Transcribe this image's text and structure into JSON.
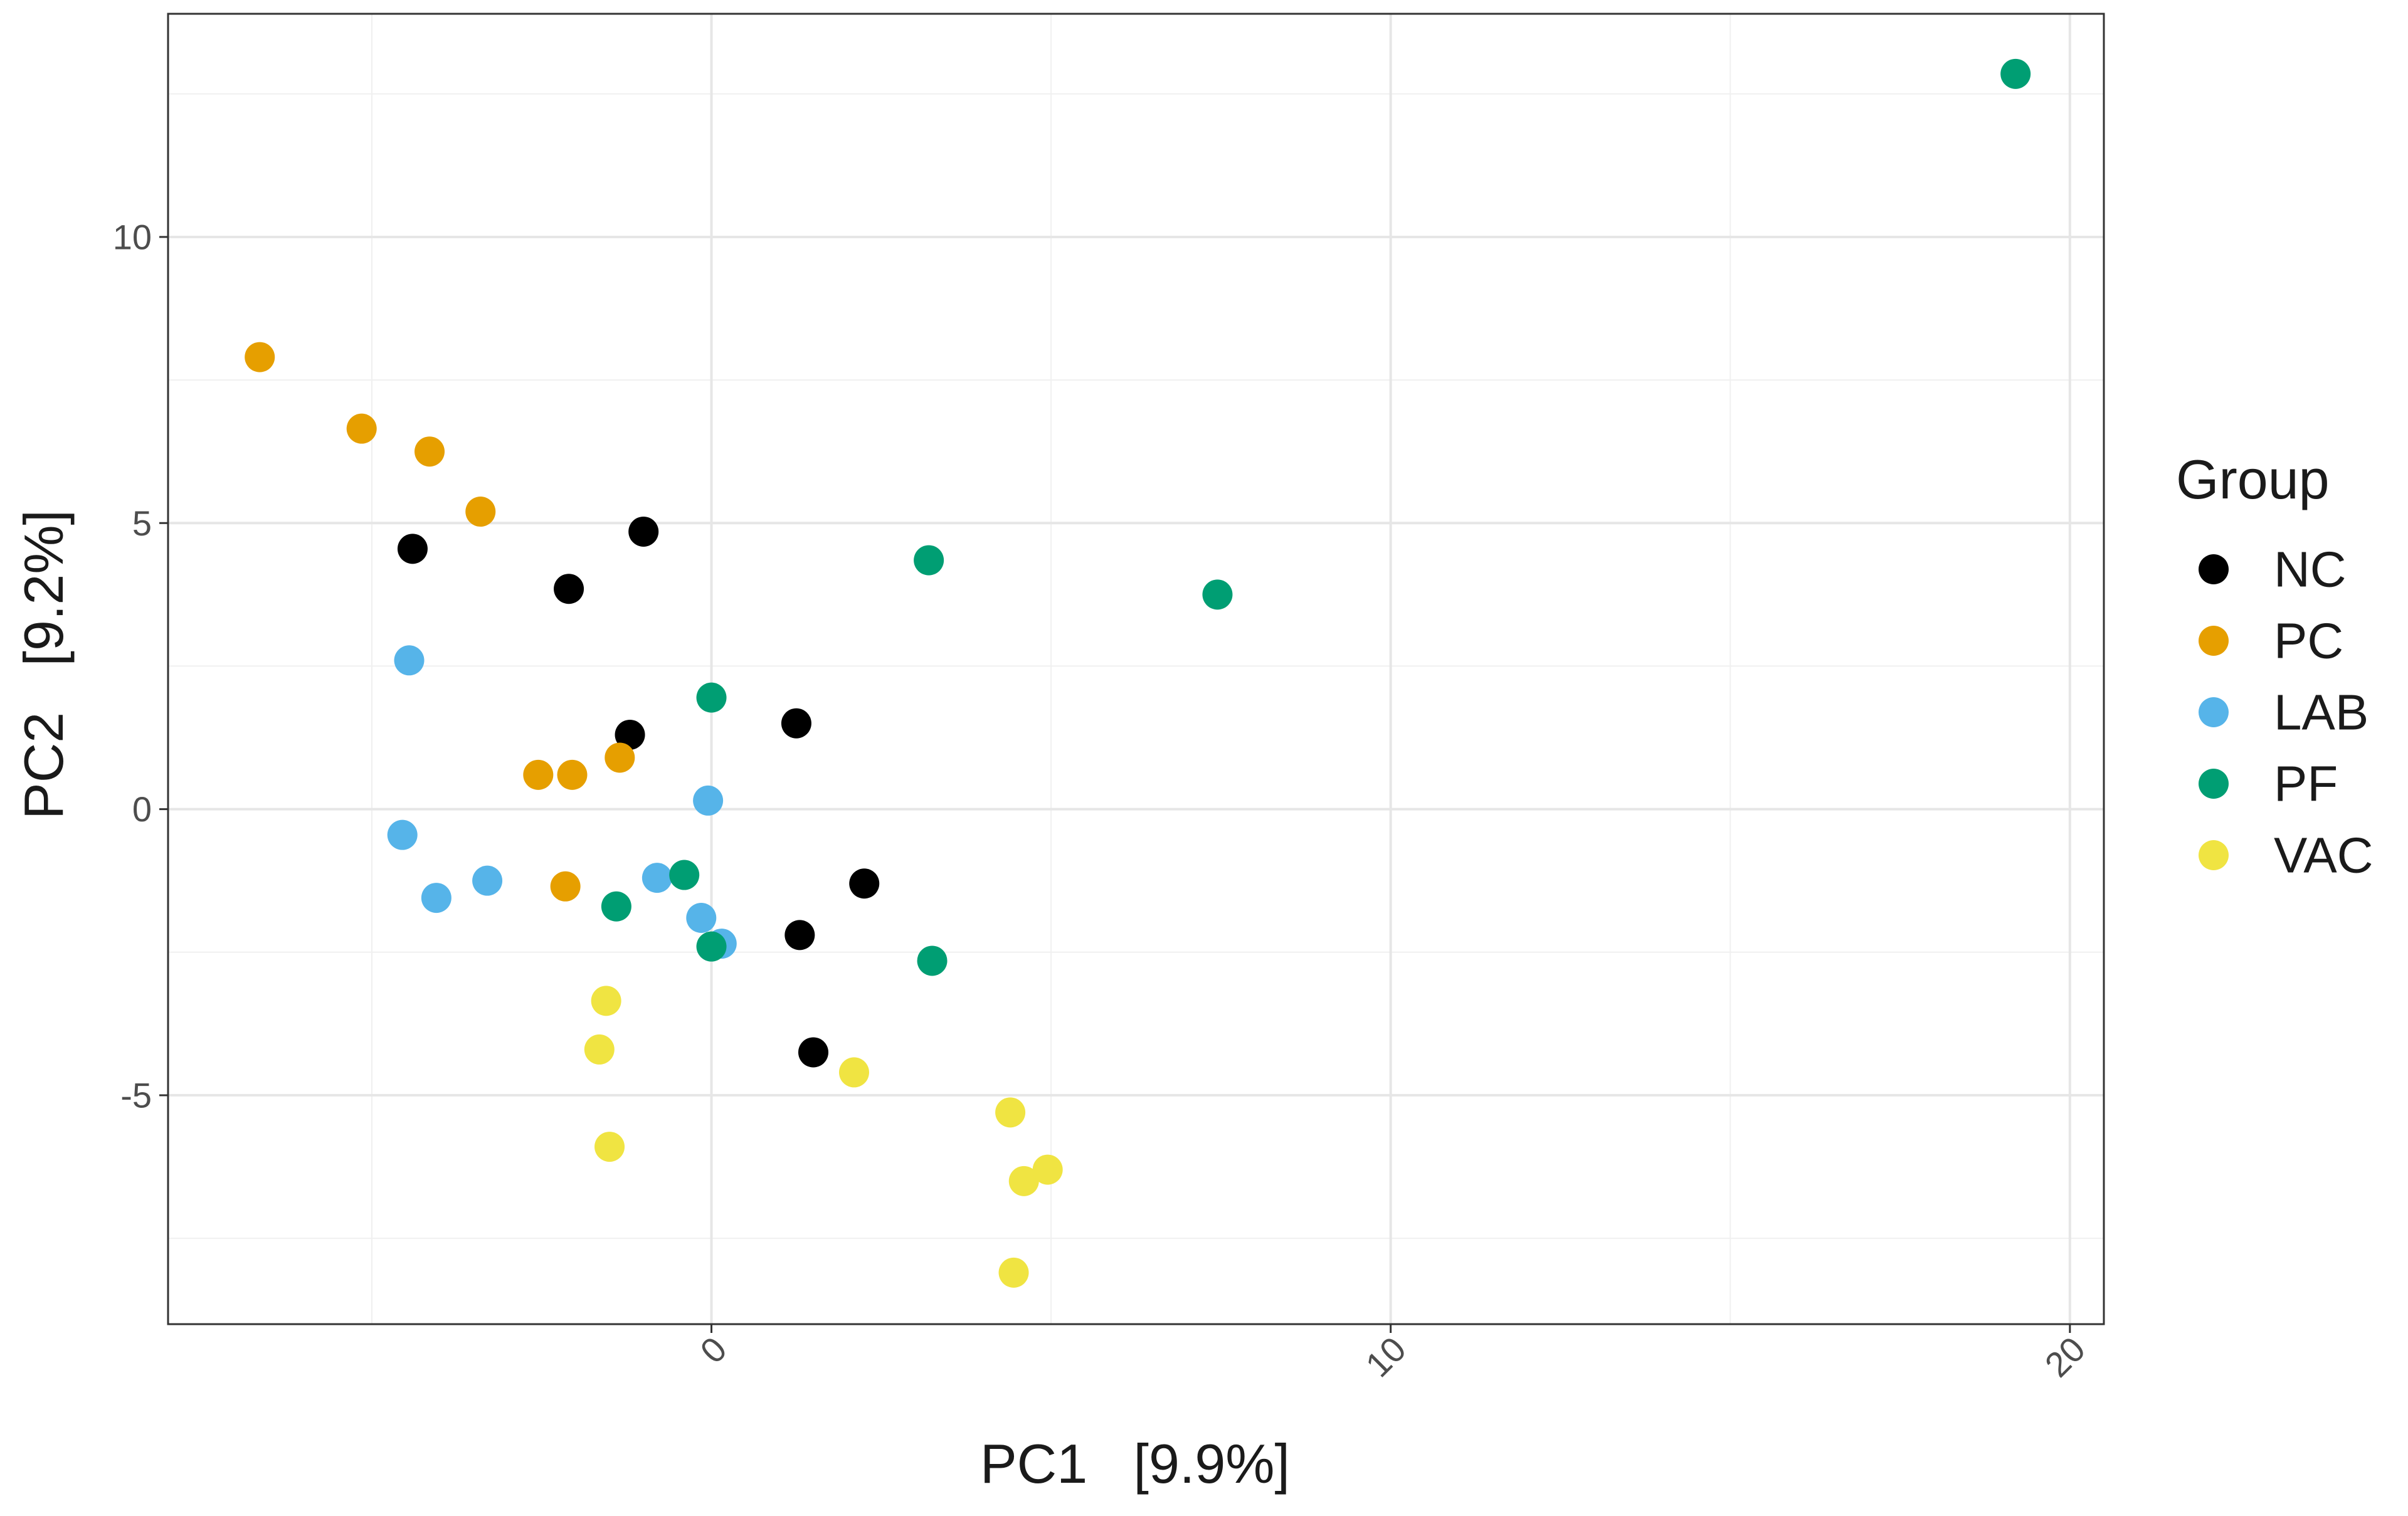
{
  "chart_data": {
    "type": "scatter",
    "title": "",
    "xlabel": "PC1   [9.9%]",
    "ylabel": "PC2   [9.2%]",
    "xlim": [
      -8.0,
      20.5
    ],
    "ylim": [
      -9.0,
      13.9
    ],
    "x_ticks": [
      0,
      10,
      20
    ],
    "x_tick_labels": [
      "0",
      "10",
      "20"
    ],
    "y_ticks": [
      -5,
      0,
      5,
      10
    ],
    "y_tick_labels": [
      "-5",
      "0",
      "5",
      "10"
    ],
    "x_minor_ticks": [
      -5,
      5,
      15
    ],
    "y_minor_ticks": [
      -7.5,
      -2.5,
      2.5,
      7.5,
      12.5
    ],
    "grid": true,
    "legend": {
      "title": "Group",
      "position": "right",
      "entries": [
        {
          "name": "NC",
          "color": "#000000"
        },
        {
          "name": "PC",
          "color": "#E69F00"
        },
        {
          "name": "LAB",
          "color": "#56B4E9"
        },
        {
          "name": "PF",
          "color": "#009E73"
        },
        {
          "name": "VAC",
          "color": "#F0E442"
        }
      ]
    },
    "series": [
      {
        "name": "NC",
        "color": "#000000",
        "points": [
          {
            "x": -4.4,
            "y": 4.55
          },
          {
            "x": -1.0,
            "y": 4.85
          },
          {
            "x": -2.1,
            "y": 3.85
          },
          {
            "x": -1.2,
            "y": 1.3
          },
          {
            "x": 1.25,
            "y": 1.5
          },
          {
            "x": 2.25,
            "y": -1.3
          },
          {
            "x": 1.3,
            "y": -2.2
          },
          {
            "x": 1.5,
            "y": -4.25
          }
        ]
      },
      {
        "name": "PC",
        "color": "#E69F00",
        "points": [
          {
            "x": -6.65,
            "y": 7.9
          },
          {
            "x": -5.15,
            "y": 6.65
          },
          {
            "x": -4.15,
            "y": 6.25
          },
          {
            "x": -3.4,
            "y": 5.2
          },
          {
            "x": -2.55,
            "y": 0.6
          },
          {
            "x": -2.05,
            "y": 0.6
          },
          {
            "x": -1.35,
            "y": 0.9
          },
          {
            "x": -2.15,
            "y": -1.35
          }
        ]
      },
      {
        "name": "LAB",
        "color": "#56B4E9",
        "points": [
          {
            "x": -4.45,
            "y": 2.6
          },
          {
            "x": -4.55,
            "y": -0.45
          },
          {
            "x": -4.05,
            "y": -1.55
          },
          {
            "x": -3.3,
            "y": -1.25
          },
          {
            "x": -0.8,
            "y": -1.2
          },
          {
            "x": -0.15,
            "y": -1.9
          },
          {
            "x": 0.15,
            "y": -2.35
          },
          {
            "x": -0.05,
            "y": 0.15
          }
        ]
      },
      {
        "name": "PF",
        "color": "#009E73",
        "points": [
          {
            "x": 19.2,
            "y": 12.85
          },
          {
            "x": 3.2,
            "y": 4.35
          },
          {
            "x": 7.45,
            "y": 3.75
          },
          {
            "x": 0.0,
            "y": 1.95
          },
          {
            "x": -0.4,
            "y": -1.15
          },
          {
            "x": -1.4,
            "y": -1.7
          },
          {
            "x": 0.0,
            "y": -2.4
          },
          {
            "x": 3.25,
            "y": -2.65
          }
        ]
      },
      {
        "name": "VAC",
        "color": "#F0E442",
        "points": [
          {
            "x": -1.55,
            "y": -3.35
          },
          {
            "x": -1.65,
            "y": -4.2
          },
          {
            "x": -1.5,
            "y": -5.9
          },
          {
            "x": 2.1,
            "y": -4.6
          },
          {
            "x": 4.4,
            "y": -5.3
          },
          {
            "x": 4.6,
            "y": -6.5
          },
          {
            "x": 4.95,
            "y": -6.3
          },
          {
            "x": 4.45,
            "y": -8.1
          }
        ]
      }
    ]
  }
}
